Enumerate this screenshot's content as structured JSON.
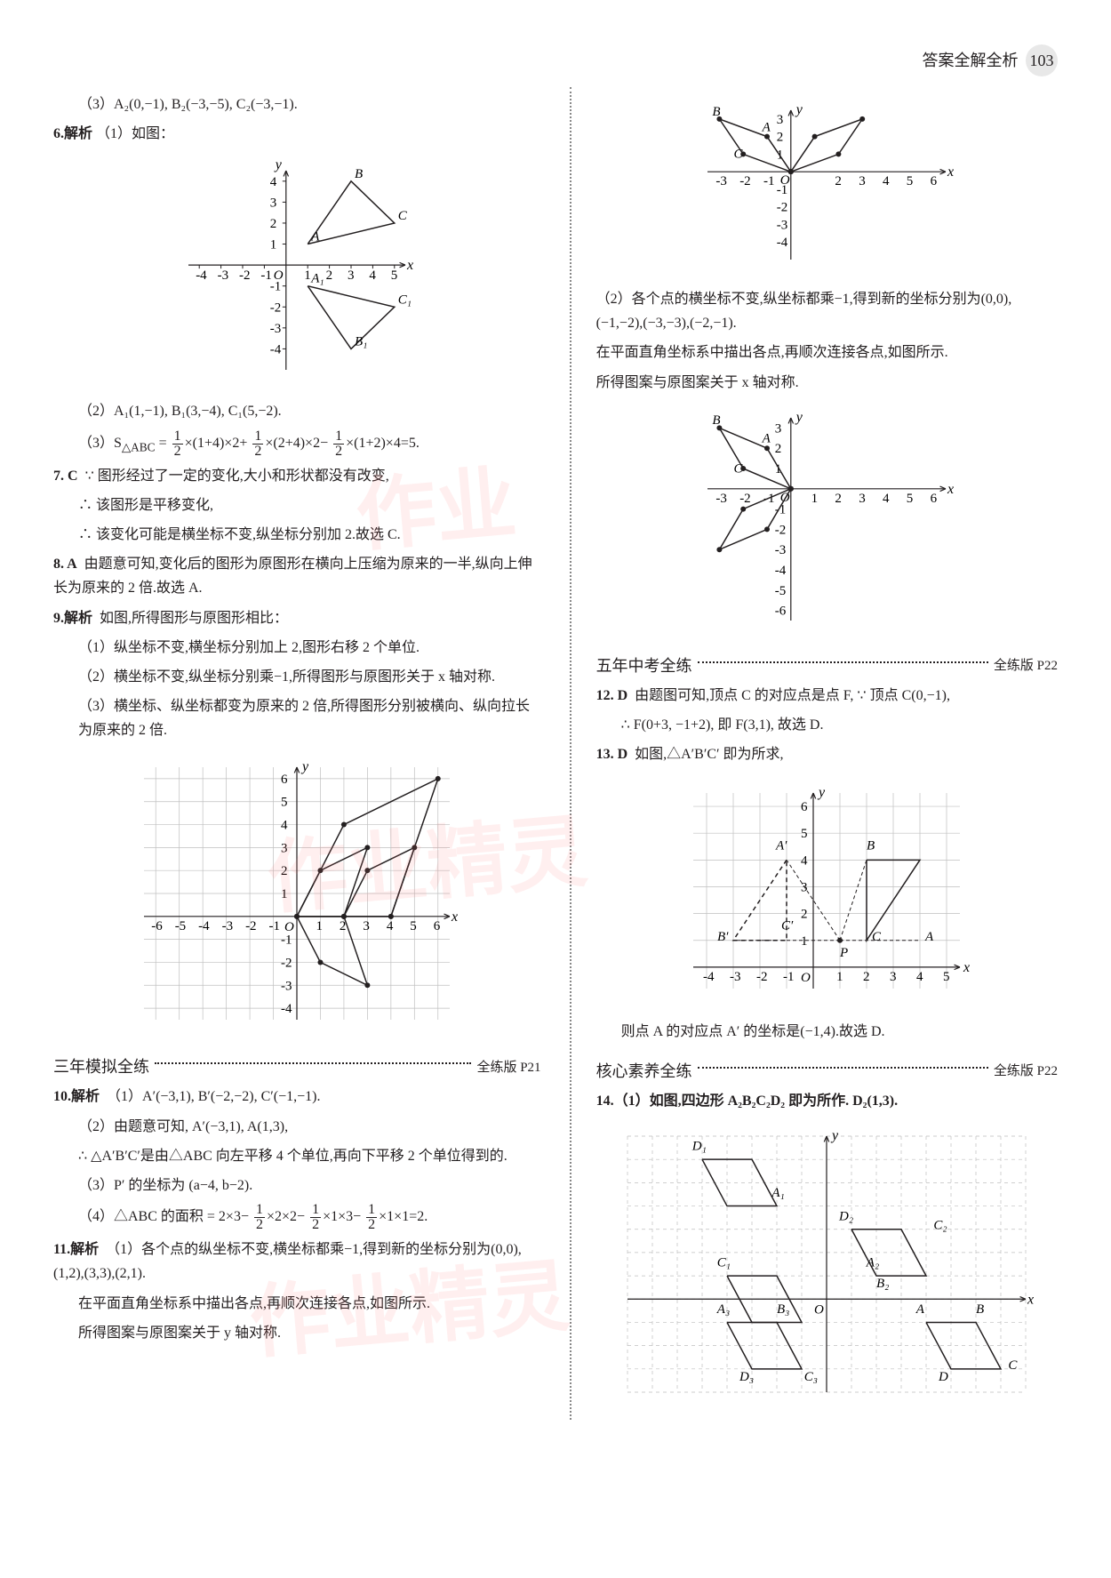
{
  "header": {
    "title": "答案全解全析",
    "page": "103"
  },
  "left": {
    "p3": "（3）A₂(0,−1), B₂(−3,−5), C₂(−3,−1).",
    "p6a": "6.解析",
    "p6b": "（1）如图：",
    "chart6": {
      "type": "line",
      "bg": "#ffffff",
      "axis": "#231f20",
      "xlim": [
        -4.5,
        5.5
      ],
      "ylim": [
        -5,
        4.5
      ],
      "xticks": [
        -4,
        -3,
        -2,
        -1,
        1,
        2,
        3,
        4,
        5
      ],
      "yticks": [
        -4,
        -3,
        -2,
        -1,
        1,
        2,
        3,
        4
      ],
      "tri1": {
        "pts": [
          [
            1,
            1
          ],
          [
            3,
            4
          ],
          [
            5,
            2
          ]
        ],
        "labels": [
          "A",
          "B",
          "C"
        ]
      },
      "tri2": {
        "pts": [
          [
            1,
            -1
          ],
          [
            3,
            -4
          ],
          [
            5,
            -2
          ]
        ],
        "labels": [
          "A₁",
          "B₁",
          "C₁"
        ]
      }
    },
    "p6c": "（2）A₁(1,−1), B₁(3,−4), C₁(5,−2).",
    "p6d_pre": "（3）S",
    "p6d_sub": "△ABC",
    "p6d_mid": " = ",
    "frac12": {
      "num": "1",
      "den": "2"
    },
    "p6d_1": "×(1+4)×2+",
    "p6d_2": "×(2+4)×2−",
    "p6d_3": "×(1+2)×4=5.",
    "p7a": "7. C",
    "p7b": "∵ 图形经过了一定的变化,大小和形状都没有改变,",
    "p7c": "∴ 该图形是平移变化,",
    "p7d": "∴ 该变化可能是横坐标不变,纵坐标分别加 2.故选 C.",
    "p8a": "8. A",
    "p8b": "由题意可知,变化后的图形为原图形在横向上压缩为原来的一半,纵向上伸长为原来的 2 倍.故选 A.",
    "p9a": "9.解析",
    "p9b": "如图,所得图形与原图形相比：",
    "p9c": "（1）纵坐标不变,横坐标分别加上 2,图形右移 2 个单位.",
    "p9d": "（2）横坐标不变,纵坐标分别乘−1,所得图形与原图形关于 x 轴对称.",
    "p9e": "（3）横坐标、纵坐标都变为原来的 2 倍,所得图形分别被横向、纵向拉长为原来的 2 倍.",
    "chart9": {
      "type": "scatter-line-grid",
      "grid": "#bfbfbf",
      "axis": "#231f20",
      "xlim": [
        -6.5,
        6.5
      ],
      "ylim": [
        -4.5,
        6.5
      ],
      "xticks": [
        -6,
        -5,
        -4,
        -3,
        -2,
        -1,
        1,
        2,
        3,
        4,
        5,
        6
      ],
      "yticks": [
        -4,
        -3,
        -2,
        -1,
        1,
        2,
        3,
        4,
        5,
        6
      ],
      "shapes": [
        {
          "pts": [
            [
              0,
              0
            ],
            [
              1,
              2
            ],
            [
              3,
              3
            ],
            [
              2,
              0
            ]
          ],
          "dots": true
        },
        {
          "pts": [
            [
              2,
              0
            ],
            [
              3,
              2
            ],
            [
              5,
              3
            ],
            [
              4,
              0
            ]
          ],
          "dots": true
        },
        {
          "pts": [
            [
              0,
              0
            ],
            [
              1,
              -2
            ],
            [
              3,
              -3
            ],
            [
              2,
              0
            ]
          ],
          "dots": true
        },
        {
          "pts": [
            [
              0,
              0
            ],
            [
              2,
              4
            ],
            [
              6,
              6
            ],
            [
              4,
              0
            ]
          ],
          "dots": true
        }
      ]
    },
    "sec1": {
      "title": "三年模拟全练",
      "ref": "全练版 P21"
    },
    "p10a": "10.解析",
    "p10b": "（1）A′(−3,1), B′(−2,−2), C′(−1,−1).",
    "p10c": "（2）由题意可知, A′(−3,1), A(1,3),",
    "p10d": "∴ △A′B′C′是由△ABC 向左平移 4 个单位,再向下平移 2 个单位得到的.",
    "p10e": "（3）P′ 的坐标为 (a−4, b−2).",
    "p10f_pre": "（4）△ABC 的面积 = 2×3−",
    "p10f_1": "×2×2−",
    "p10f_2": "×1×3−",
    "p10f_3": "×1×1=2.",
    "p11a": "11.解析",
    "p11b": "（1）各个点的纵坐标不变,横坐标都乘−1,得到新的坐标分别为(0,0),(1,2),(3,3),(2,1).",
    "p11c": "在平面直角坐标系中描出各点,再顺次连接各点,如图所示.",
    "p11d": "所得图案与原图案关于 y 轴对称."
  },
  "right": {
    "chart_top": {
      "type": "line",
      "axis": "#231f20",
      "xlim": [
        -3.5,
        6.5
      ],
      "ylim": [
        -5,
        3.5
      ],
      "xticks": [
        -3,
        -2,
        -1,
        2,
        3,
        4,
        5,
        6
      ],
      "yticks": [
        -4,
        -3,
        -2,
        -1,
        1,
        2,
        3
      ],
      "shape1": {
        "pts": [
          [
            0,
            0
          ],
          [
            -1,
            2
          ],
          [
            -3,
            3
          ],
          [
            -2,
            1
          ],
          [
            0,
            0
          ]
        ],
        "labels": [
          [
            "B",
            -3.3,
            3.2
          ],
          [
            "A",
            -1.2,
            2.3
          ],
          [
            "C",
            -2.4,
            0.8
          ]
        ]
      },
      "shape2": {
        "pts": [
          [
            0,
            0
          ],
          [
            1,
            2
          ],
          [
            3,
            3
          ],
          [
            2,
            1
          ],
          [
            0,
            0
          ]
        ]
      }
    },
    "p2a": "（2）各个点的横坐标不变,纵坐标都乘−1,得到新的坐标分别为(0,0),(−1,−2),(−3,−3),(−2,−1).",
    "p2b": "在平面直角坐标系中描出各点,再顺次连接各点,如图所示.",
    "p2c": "所得图案与原图案关于 x 轴对称.",
    "chart_mid": {
      "type": "line",
      "axis": "#231f20",
      "xlim": [
        -3.5,
        6.5
      ],
      "ylim": [
        -6.5,
        3.5
      ],
      "xticks": [
        -3,
        -2,
        -1,
        1,
        2,
        3,
        4,
        5,
        6
      ],
      "yticks": [
        -6,
        -5,
        -4,
        -3,
        -2,
        -1,
        1,
        2,
        3
      ],
      "shape1": {
        "pts": [
          [
            0,
            0
          ],
          [
            -1,
            2
          ],
          [
            -3,
            3
          ],
          [
            -2,
            1
          ],
          [
            0,
            0
          ]
        ],
        "labels": [
          [
            "B",
            -3.3,
            3.2
          ],
          [
            "A",
            -1.2,
            2.3
          ],
          [
            "C",
            -2.4,
            0.8
          ]
        ]
      },
      "shape2": {
        "pts": [
          [
            0,
            0
          ],
          [
            -1,
            -2
          ],
          [
            -3,
            -3
          ],
          [
            -2,
            -1
          ],
          [
            0,
            0
          ]
        ]
      }
    },
    "sec2": {
      "title": "五年中考全练",
      "ref": "全练版 P22"
    },
    "p12a": "12. D",
    "p12b": "由题图可知,顶点 C 的对应点是点 F, ∵ 顶点 C(0,−1),",
    "p12c": "∴ F(0+3, −1+2), 即 F(3,1), 故选 D.",
    "p13a": "13. D",
    "p13b": "如图,△A′B′C′ 即为所求,",
    "chart13": {
      "type": "grid-tri",
      "grid": "#bfbfbf",
      "axis": "#231f20",
      "xlim": [
        -4.5,
        5.5
      ],
      "ylim": [
        -0.8,
        6.5
      ],
      "xticks": [
        -4,
        -3,
        -2,
        -1,
        1,
        2,
        3,
        4,
        5
      ],
      "yticks": [
        1,
        2,
        3,
        4,
        5,
        6
      ],
      "tri_solid": {
        "pts": [
          [
            2,
            4
          ],
          [
            4,
            4
          ],
          [
            2,
            1
          ]
        ],
        "labels": [
          [
            "B",
            2,
            4.4
          ],
          [
            "A",
            4.2,
            1
          ],
          [
            "C",
            2.2,
            1
          ]
        ]
      },
      "tri_dash": {
        "pts": [
          [
            -1,
            4
          ],
          [
            -3,
            1
          ],
          [
            -1,
            1
          ]
        ],
        "labels": [
          [
            "A′",
            -1.4,
            4.4
          ],
          [
            "B′",
            -3.6,
            1
          ],
          [
            "C′",
            -1.2,
            1.4
          ]
        ]
      },
      "plabel": [
        "P",
        1,
        0.4
      ]
    },
    "p13c": "则点 A 的对应点 A′ 的坐标是(−1,4).故选 D.",
    "sec3": {
      "title": "核心素养全练",
      "ref": "全练版 P22"
    },
    "p14a": "14.（1）如图,四边形 A₂B₂C₂D₂ 即为所作. D₂(1,3).",
    "chart14": {
      "type": "grid-quad",
      "grid": "#bfbfbf",
      "axis": "#231f20",
      "dash": "4,4",
      "xlim": [
        -8,
        8
      ],
      "ylim": [
        -4,
        7
      ],
      "quads": [
        {
          "pts": [
            [
              -5,
              6
            ],
            [
              -3,
              6
            ],
            [
              -2,
              4
            ],
            [
              -4,
              4
            ]
          ],
          "labels": [
            [
              "D₁",
              -5.4,
              6.4
            ],
            [
              "A₁",
              -2.2,
              4.4
            ]
          ]
        },
        {
          "pts": [
            [
              1,
              3
            ],
            [
              3,
              3
            ],
            [
              4,
              1
            ],
            [
              2,
              1
            ]
          ],
          "labels": [
            [
              "D₂",
              0.5,
              3.4
            ],
            [
              "C₂",
              4.3,
              3
            ],
            [
              "B₂",
              2,
              0.5
            ],
            [
              "A₂",
              1.6,
              1.4
            ]
          ]
        },
        {
          "pts": [
            [
              -4,
              1
            ],
            [
              -2,
              1
            ],
            [
              -1,
              -1
            ],
            [
              -3,
              -1
            ]
          ],
          "labels": [
            [
              "C₁",
              -4.4,
              1.4
            ]
          ]
        },
        {
          "pts": [
            [
              -4,
              -1
            ],
            [
              -2,
              -1
            ],
            [
              -1,
              -3
            ],
            [
              -3,
              -3
            ]
          ],
          "labels": [
            [
              "A₃",
              -4.4,
              -0.6
            ],
            [
              "B₃",
              -2,
              -0.6
            ],
            [
              "C₃",
              -0.9,
              -3.5
            ],
            [
              "D₃",
              -3.5,
              -3.5
            ]
          ]
        },
        {
          "pts": [
            [
              4,
              -1
            ],
            [
              6,
              -1
            ],
            [
              7,
              -3
            ],
            [
              5,
              -3
            ]
          ],
          "labels": [
            [
              "A",
              3.6,
              -0.6
            ],
            [
              "B",
              6,
              -0.6
            ],
            [
              "C",
              7.3,
              -3
            ],
            [
              "D",
              4.5,
              -3.5
            ]
          ]
        }
      ]
    }
  }
}
